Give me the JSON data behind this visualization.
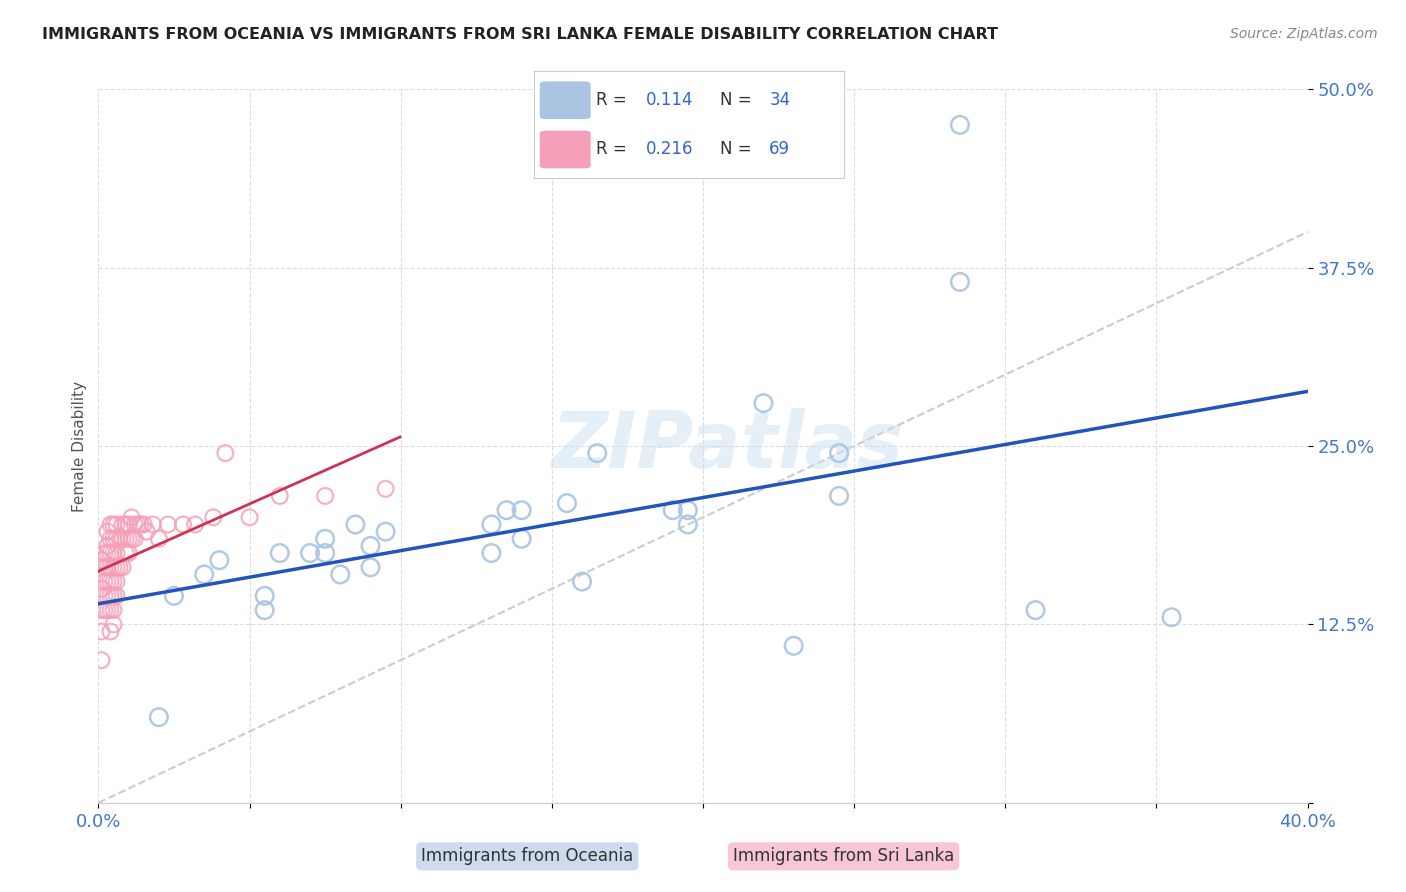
{
  "title": "IMMIGRANTS FROM OCEANIA VS IMMIGRANTS FROM SRI LANKA FEMALE DISABILITY CORRELATION CHART",
  "source": "Source: ZipAtlas.com",
  "xlabel_oceania": "Immigrants from Oceania",
  "xlabel_srilanka": "Immigrants from Sri Lanka",
  "ylabel_label": "Female Disability",
  "xlim": [
    0.0,
    0.4
  ],
  "ylim": [
    0.0,
    0.5
  ],
  "xticks": [
    0.0,
    0.05,
    0.1,
    0.15,
    0.2,
    0.25,
    0.3,
    0.35,
    0.4
  ],
  "yticks": [
    0.0,
    0.125,
    0.25,
    0.375,
    0.5
  ],
  "ytick_labels": [
    "",
    "12.5%",
    "25.0%",
    "37.5%",
    "50.0%"
  ],
  "color_oceania": "#aac4e2",
  "color_srilanka": "#f5a0b8",
  "line_color_oceania": "#2255bb",
  "line_color_srilanka": "#cc3355",
  "diag_color": "#cccccc",
  "legend_R_oceania": "0.114",
  "legend_N_oceania": "34",
  "legend_R_srilanka": "0.216",
  "legend_N_srilanka": "69",
  "watermark": "ZIPatlas",
  "oceania_x": [
    0.285,
    0.285,
    0.22,
    0.245,
    0.19,
    0.195,
    0.155,
    0.14,
    0.135,
    0.13,
    0.16,
    0.095,
    0.09,
    0.085,
    0.08,
    0.075,
    0.07,
    0.06,
    0.055,
    0.04,
    0.035,
    0.025,
    0.02,
    0.31,
    0.23,
    0.355,
    0.165,
    0.245,
    0.195,
    0.14,
    0.13,
    0.09,
    0.075,
    0.055
  ],
  "oceania_y": [
    0.475,
    0.365,
    0.28,
    0.245,
    0.205,
    0.205,
    0.21,
    0.205,
    0.205,
    0.195,
    0.155,
    0.19,
    0.18,
    0.195,
    0.16,
    0.185,
    0.175,
    0.175,
    0.145,
    0.17,
    0.16,
    0.145,
    0.06,
    0.135,
    0.11,
    0.13,
    0.245,
    0.215,
    0.195,
    0.185,
    0.175,
    0.165,
    0.175,
    0.135
  ],
  "srilanka_x": [
    0.001,
    0.001,
    0.001,
    0.001,
    0.001,
    0.002,
    0.002,
    0.002,
    0.002,
    0.002,
    0.003,
    0.003,
    0.003,
    0.003,
    0.003,
    0.003,
    0.003,
    0.004,
    0.004,
    0.004,
    0.004,
    0.004,
    0.004,
    0.004,
    0.004,
    0.005,
    0.005,
    0.005,
    0.005,
    0.005,
    0.005,
    0.005,
    0.005,
    0.006,
    0.006,
    0.006,
    0.006,
    0.006,
    0.006,
    0.007,
    0.007,
    0.008,
    0.008,
    0.008,
    0.009,
    0.009,
    0.009,
    0.01,
    0.01,
    0.01,
    0.011,
    0.011,
    0.012,
    0.012,
    0.013,
    0.014,
    0.015,
    0.016,
    0.018,
    0.02,
    0.023,
    0.028,
    0.032,
    0.038,
    0.042,
    0.05,
    0.06,
    0.075,
    0.095
  ],
  "srilanka_y": [
    0.17,
    0.15,
    0.135,
    0.12,
    0.1,
    0.175,
    0.165,
    0.155,
    0.145,
    0.135,
    0.19,
    0.18,
    0.175,
    0.165,
    0.155,
    0.145,
    0.135,
    0.195,
    0.185,
    0.175,
    0.165,
    0.155,
    0.145,
    0.135,
    0.12,
    0.195,
    0.185,
    0.175,
    0.165,
    0.155,
    0.145,
    0.135,
    0.125,
    0.195,
    0.185,
    0.175,
    0.165,
    0.155,
    0.145,
    0.185,
    0.165,
    0.195,
    0.185,
    0.165,
    0.195,
    0.185,
    0.175,
    0.195,
    0.185,
    0.175,
    0.2,
    0.185,
    0.195,
    0.185,
    0.195,
    0.195,
    0.195,
    0.19,
    0.195,
    0.185,
    0.195,
    0.195,
    0.195,
    0.2,
    0.245,
    0.2,
    0.215,
    0.215,
    0.22
  ],
  "background_color": "#ffffff",
  "grid_color": "#dddddd",
  "title_color": "#222222",
  "source_color": "#888888",
  "tick_color": "#4477cc",
  "ylabel_color": "#555555"
}
